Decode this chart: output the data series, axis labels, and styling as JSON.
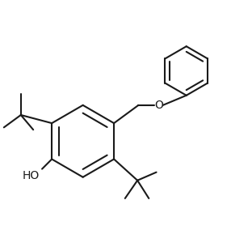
{
  "background_color": "#ffffff",
  "line_color": "#1a1a1a",
  "line_width": 1.5,
  "fig_width": 2.86,
  "fig_height": 2.84,
  "dpi": 100,
  "font_size": 10,
  "ho_label": "HO",
  "o_label": "O",
  "xlim": [
    -1.5,
    5.5
  ],
  "ylim": [
    -3.2,
    3.8
  ]
}
